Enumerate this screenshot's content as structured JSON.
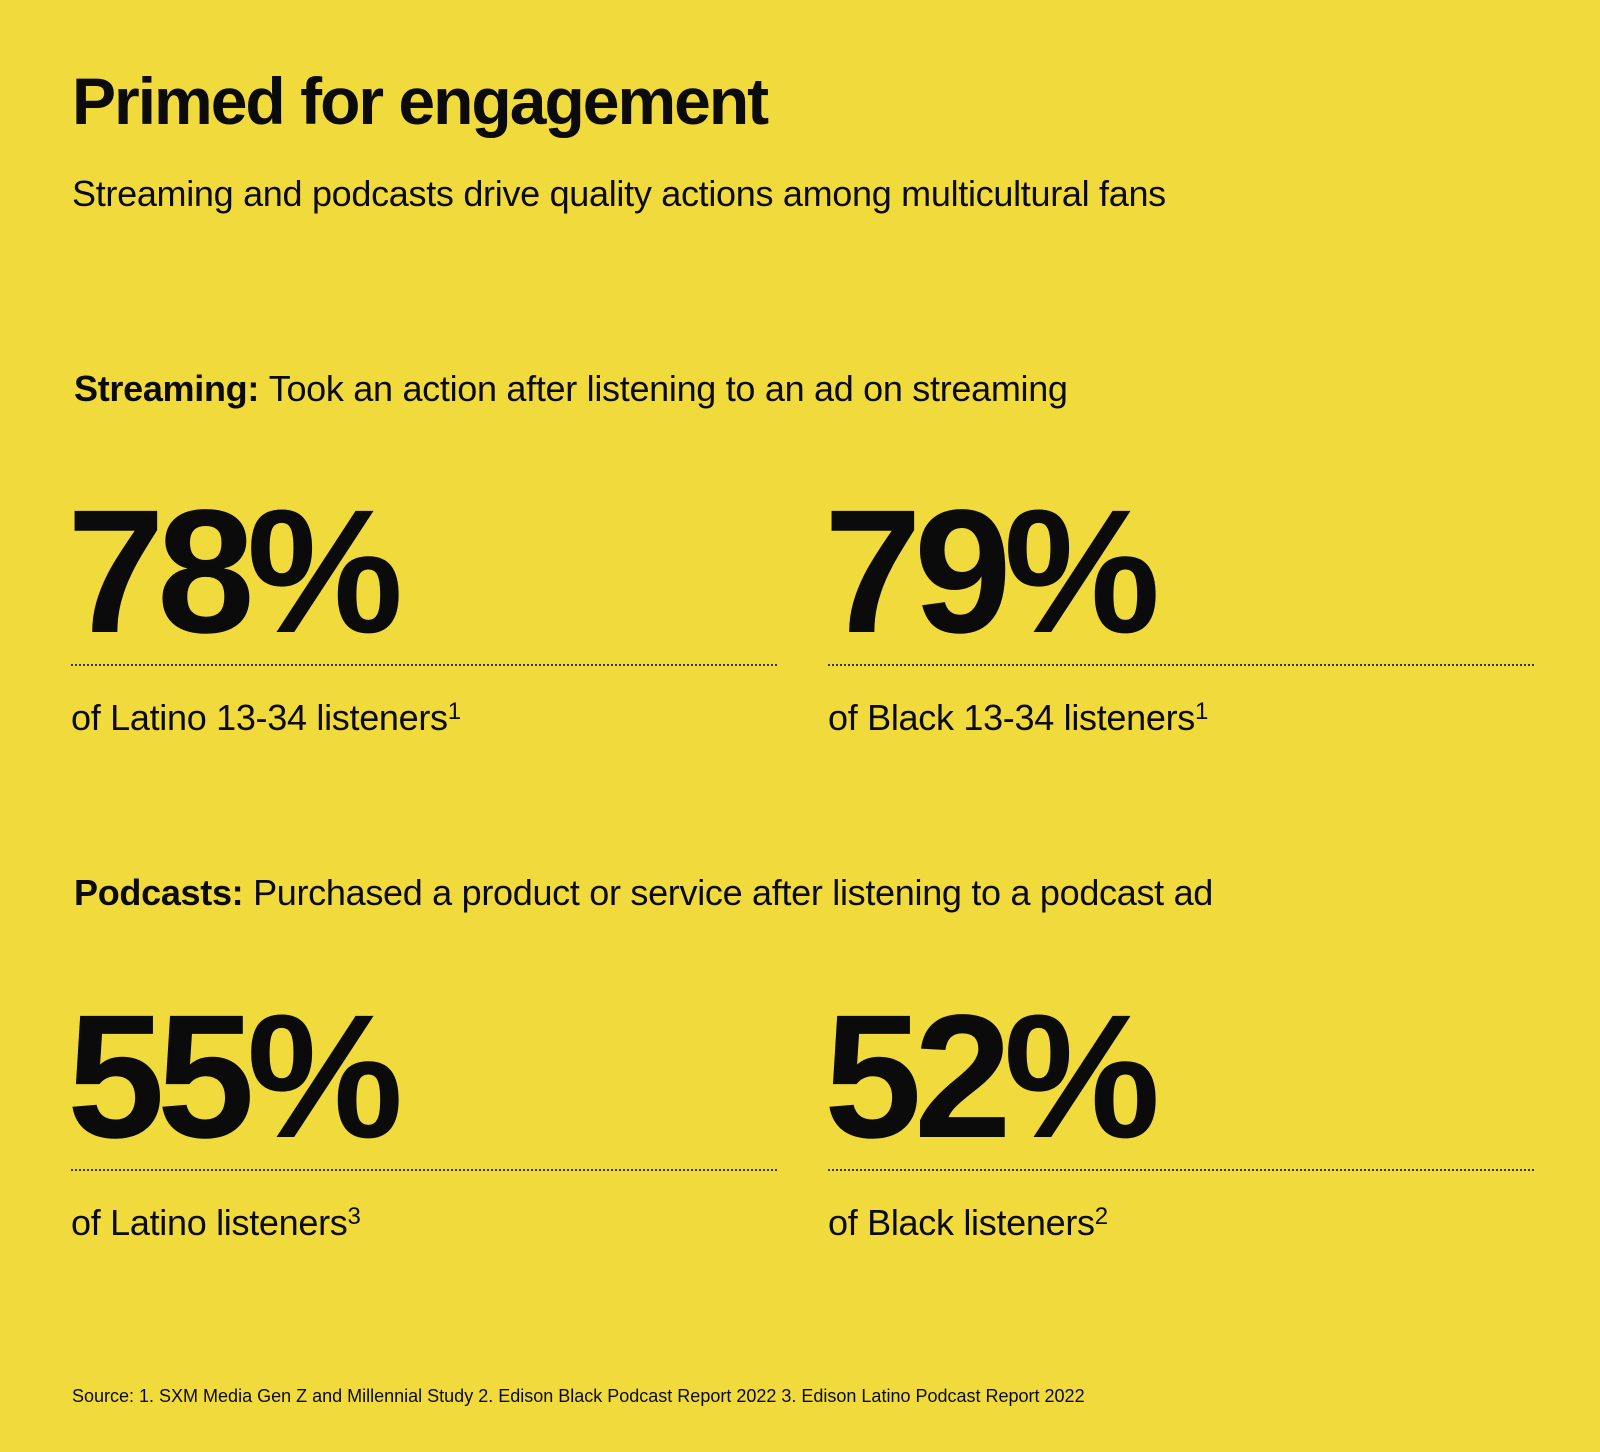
{
  "title": "Primed for engagement",
  "subtitle": "Streaming and podcasts drive quality actions among multicultural fans",
  "sections": {
    "streaming": {
      "label": "Streaming:",
      "description": "Took an action after listening to an ad on streaming",
      "stats": [
        {
          "value": "78%",
          "caption": "of Latino 13-34 listeners",
          "footnote": "1"
        },
        {
          "value": "79%",
          "caption": "of Black 13-34 listeners",
          "footnote": "1"
        }
      ]
    },
    "podcasts": {
      "label": "Podcasts:",
      "description": "Purchased a product or service after listening to a podcast ad",
      "stats": [
        {
          "value": "55%",
          "caption": "of Latino listeners",
          "footnote": "3"
        },
        {
          "value": "52%",
          "caption": "of Black listeners",
          "footnote": "2"
        }
      ]
    }
  },
  "source": "Source: 1. SXM Media Gen Z and Millennial Study 2. Edison Black Podcast Report 2022  3. Edison Latino Podcast Report 2022",
  "colors": {
    "background": "#f1da3c",
    "text": "#0b0b0b"
  }
}
